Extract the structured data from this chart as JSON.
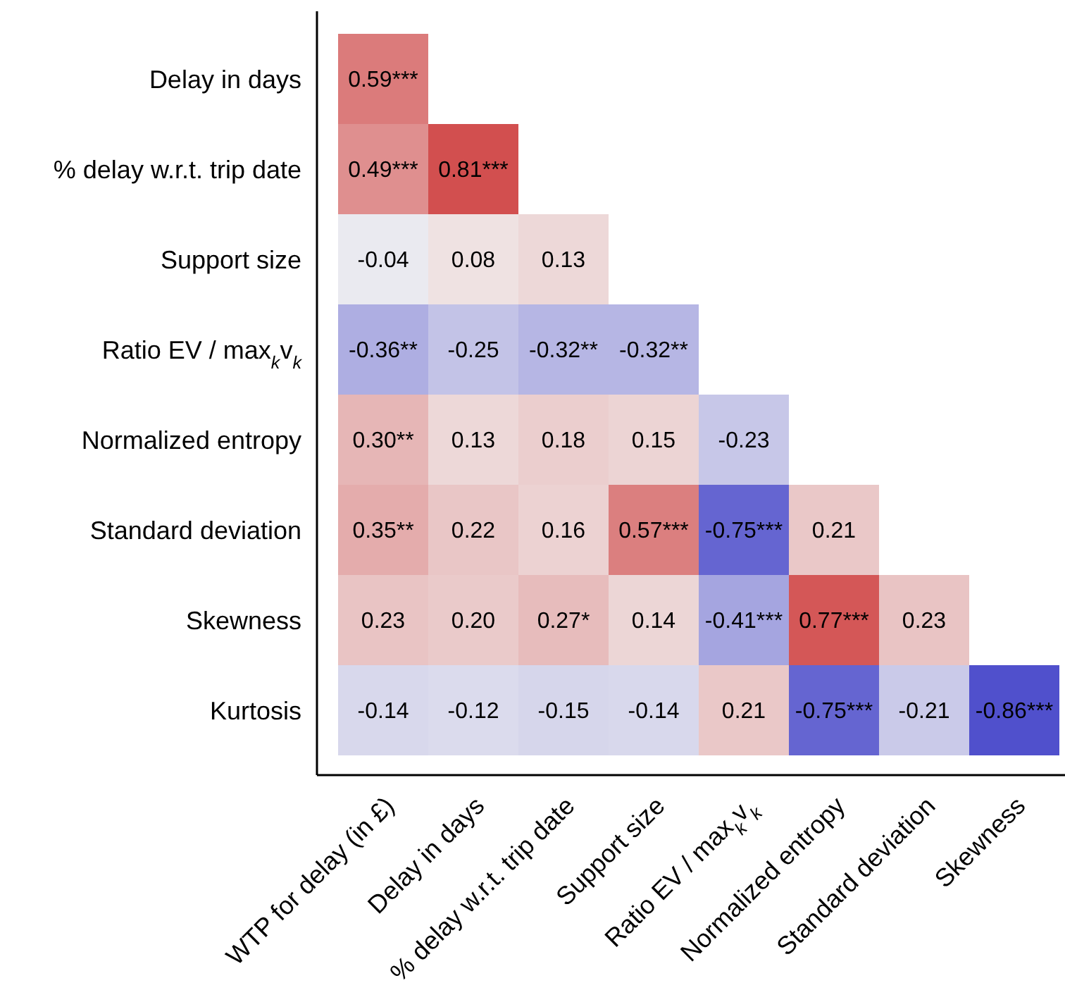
{
  "chart_data": {
    "type": "heatmap",
    "categories": [
      "WTP for delay (in £)",
      "Delay in days",
      "% delay w.r.t. trip date",
      "Support size",
      "Ratio EV / max$_{k}$v$_{k}$",
      "Normalized entropy",
      "Standard deviation",
      "Skewness"
    ],
    "y_categories": [
      "Delay in days",
      "% delay w.r.t. trip date",
      "Support size",
      "Ratio EV / max$_{k}$v$_{k}$",
      "Normalized entropy",
      "Standard deviation",
      "Skewness",
      "Kurtosis"
    ],
    "cells": [
      [
        0.59,
        null,
        null,
        null,
        null,
        null,
        null,
        null
      ],
      [
        0.49,
        0.81,
        null,
        null,
        null,
        null,
        null,
        null
      ],
      [
        -0.04,
        0.08,
        0.13,
        null,
        null,
        null,
        null,
        null
      ],
      [
        -0.36,
        -0.25,
        -0.32,
        -0.32,
        null,
        null,
        null,
        null
      ],
      [
        0.3,
        0.13,
        0.18,
        0.15,
        -0.23,
        null,
        null,
        null
      ],
      [
        0.35,
        0.22,
        0.16,
        0.57,
        -0.75,
        0.21,
        null,
        null
      ],
      [
        0.23,
        0.2,
        0.27,
        0.14,
        -0.41,
        0.77,
        0.23,
        null
      ],
      [
        -0.14,
        -0.12,
        -0.15,
        -0.14,
        0.21,
        -0.75,
        -0.21,
        -0.86
      ]
    ],
    "cell_labels": [
      [
        "0.59***",
        null,
        null,
        null,
        null,
        null,
        null,
        null
      ],
      [
        "0.49***",
        "0.81***",
        null,
        null,
        null,
        null,
        null,
        null
      ],
      [
        "-0.04",
        "0.08",
        "0.13",
        null,
        null,
        null,
        null,
        null
      ],
      [
        "-0.36**",
        "-0.25",
        "-0.32**",
        "-0.32**",
        null,
        null,
        null,
        null
      ],
      [
        "0.30**",
        "0.13",
        "0.18",
        "0.15",
        "-0.23",
        null,
        null,
        null
      ],
      [
        "0.35**",
        "0.22",
        "0.16",
        "0.57***",
        "-0.75***",
        "0.21",
        null,
        null
      ],
      [
        "0.23",
        "0.20",
        "0.27*",
        "0.14",
        "-0.41***",
        "0.77***",
        "0.23",
        null
      ],
      [
        "-0.14",
        "-0.12",
        "-0.15",
        "-0.14",
        "0.21",
        "-0.75***",
        "-0.21",
        "-0.86***"
      ]
    ]
  }
}
